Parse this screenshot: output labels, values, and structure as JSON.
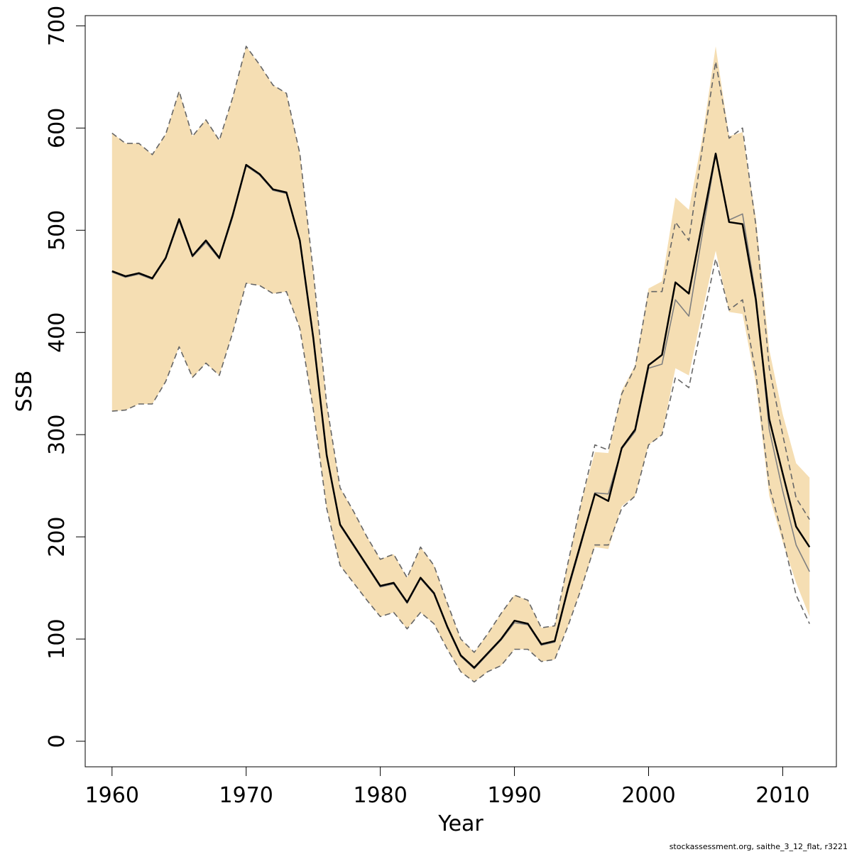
{
  "chart_data": {
    "type": "line",
    "xlabel": "Year",
    "ylabel": "SSB",
    "xlim": [
      1958,
      2014
    ],
    "ylim": [
      -25,
      710
    ],
    "xticks": [
      1960,
      1970,
      1980,
      1990,
      2000,
      2010
    ],
    "yticks": [
      0,
      100,
      200,
      300,
      400,
      500,
      600,
      700
    ],
    "footer": "stockassessment.org, saithe_3_12_flat, r3221",
    "colors": {
      "band": "#f5deb3",
      "main": "#000000",
      "alt": "#808080",
      "ci": "#666666"
    },
    "x": [
      1960,
      1961,
      1962,
      1963,
      1964,
      1965,
      1966,
      1967,
      1968,
      1969,
      1970,
      1971,
      1972,
      1973,
      1974,
      1975,
      1976,
      1977,
      1978,
      1979,
      1980,
      1981,
      1982,
      1983,
      1984,
      1985,
      1986,
      1987,
      1988,
      1989,
      1990,
      1991,
      1992,
      1993,
      1994,
      1995,
      1996,
      1997,
      1998,
      1999,
      2000,
      2001,
      2002,
      2003,
      2004,
      2005,
      2006,
      2007,
      2008,
      2009,
      2010,
      2011,
      2012
    ],
    "band_upper": [
      595,
      585,
      585,
      574,
      594,
      636,
      592,
      608,
      588,
      630,
      680,
      662,
      642,
      634,
      575,
      460,
      330,
      248,
      225,
      200,
      178,
      183,
      160,
      190,
      172,
      135,
      100,
      87,
      105,
      125,
      143,
      138,
      111,
      113,
      175,
      235,
      283,
      282,
      343,
      368,
      443,
      450,
      532,
      520,
      590,
      680,
      592,
      596,
      512,
      383,
      320,
      272,
      258
    ],
    "band_lower": [
      323,
      324,
      330,
      330,
      352,
      386,
      356,
      370,
      358,
      400,
      448,
      446,
      438,
      440,
      404,
      325,
      228,
      172,
      155,
      138,
      122,
      126,
      110,
      126,
      115,
      90,
      68,
      58,
      68,
      74,
      90,
      90,
      78,
      80,
      113,
      150,
      190,
      188,
      230,
      240,
      290,
      300,
      365,
      358,
      420,
      480,
      420,
      418,
      350,
      240,
      195,
      155,
      122
    ],
    "series": [
      {
        "values": [
          460,
          455,
          458,
          453,
          473,
          511,
          475,
          490,
          473,
          515,
          564,
          555,
          540,
          537,
          490,
          395,
          280,
          212,
          192,
          172,
          152,
          155,
          136,
          160,
          145,
          112,
          84,
          72,
          86,
          100,
          118,
          115,
          95,
          98,
          150,
          196,
          242,
          235,
          287,
          305,
          368,
          378,
          449,
          438,
          507,
          575,
          508,
          506,
          432,
          315,
          262,
          210,
          190
        ]
      },
      {
        "values": [
          459,
          454,
          457,
          452,
          472,
          509,
          474,
          488,
          472,
          513,
          563,
          554,
          539,
          536,
          489,
          394,
          279,
          211,
          191,
          171,
          151,
          154,
          135,
          159,
          144,
          111,
          83,
          71,
          85,
          99,
          116,
          114,
          94,
          97,
          148,
          194,
          243,
          242,
          286,
          303,
          365,
          369,
          432,
          416,
          496,
          574,
          510,
          516,
          436,
          305,
          245,
          192,
          166
        ]
      },
      {
        "values": [
          595,
          585,
          585,
          574,
          594,
          636,
          592,
          608,
          588,
          630,
          680,
          662,
          642,
          634,
          575,
          460,
          330,
          248,
          225,
          200,
          178,
          183,
          160,
          190,
          172,
          135,
          100,
          87,
          105,
          125,
          143,
          138,
          111,
          113,
          175,
          235,
          290,
          285,
          340,
          366,
          440,
          440,
          508,
          490,
          580,
          665,
          590,
          600,
          505,
          365,
          300,
          238,
          217
        ]
      },
      {
        "values": [
          323,
          324,
          330,
          330,
          352,
          386,
          356,
          370,
          358,
          400,
          448,
          446,
          438,
          440,
          404,
          325,
          228,
          172,
          155,
          138,
          122,
          126,
          110,
          126,
          115,
          90,
          68,
          58,
          68,
          74,
          90,
          90,
          78,
          80,
          113,
          150,
          192,
          192,
          228,
          240,
          290,
          300,
          356,
          346,
          410,
          472,
          422,
          432,
          360,
          250,
          200,
          143,
          115
        ]
      }
    ]
  }
}
